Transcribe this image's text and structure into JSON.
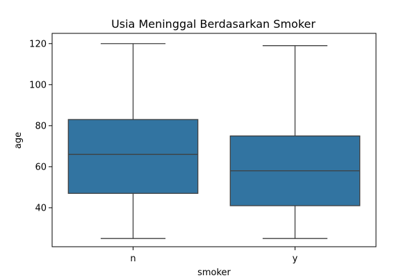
{
  "chart_data": {
    "type": "box",
    "title": "Usia Meninggal Berdasarkan Smoker",
    "xlabel": "smoker",
    "ylabel": "age",
    "ylim": [
      21,
      125
    ],
    "yticks": [
      40,
      60,
      80,
      100,
      120
    ],
    "categories": [
      "n",
      "y"
    ],
    "boxes": [
      {
        "category": "n",
        "whisker_low": 25,
        "q1": 47,
        "median": 66,
        "q3": 83,
        "whisker_high": 120
      },
      {
        "category": "y",
        "whisker_low": 25,
        "q1": 41,
        "median": 58,
        "q3": 75,
        "whisker_high": 119
      }
    ],
    "box_color": "#3274a1",
    "line_color": "#3f3f3f",
    "grid": false,
    "legend": false
  }
}
